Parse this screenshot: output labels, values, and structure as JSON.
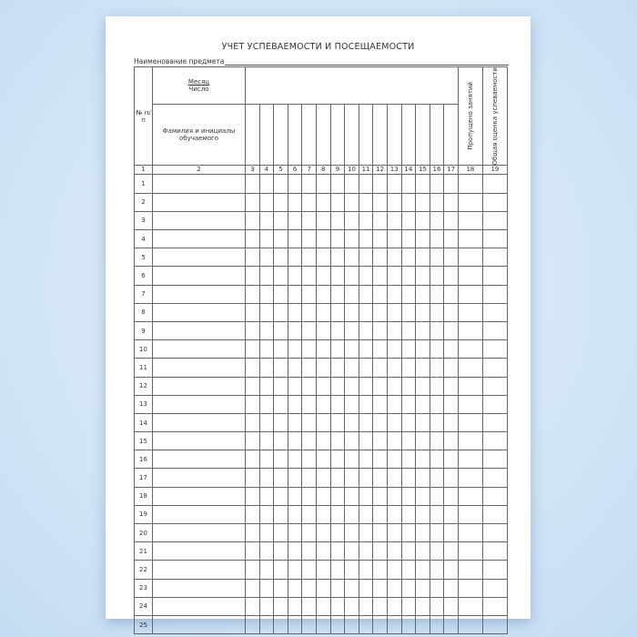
{
  "title": "УЧЕТ УСПЕВАЕМОСТИ И ПОСЕЩАЕМОСТИ",
  "subject_label": "Наименование предмета",
  "header": {
    "num": "№ п/п",
    "month": "Месяц",
    "day": "Число",
    "name": "Фамилия и инициалы обучаемого",
    "missed": "Пропущено занятий",
    "grade": "Общая оценка успеваемости"
  },
  "column_numbers": [
    "1",
    "2",
    "3",
    "4",
    "5",
    "6",
    "7",
    "8",
    "9",
    "10",
    "11",
    "12",
    "13",
    "14",
    "15",
    "16",
    "17",
    "18",
    "19"
  ],
  "rows": [
    "1",
    "2",
    "3",
    "4",
    "5",
    "6",
    "7",
    "8",
    "9",
    "10",
    "11",
    "12",
    "13",
    "14",
    "15",
    "16",
    "17",
    "18",
    "19",
    "20",
    "21",
    "22",
    "23",
    "24",
    "25"
  ],
  "colors": {
    "background": "#cfe3f6",
    "page": "#ffffff",
    "lines": "#666666"
  }
}
